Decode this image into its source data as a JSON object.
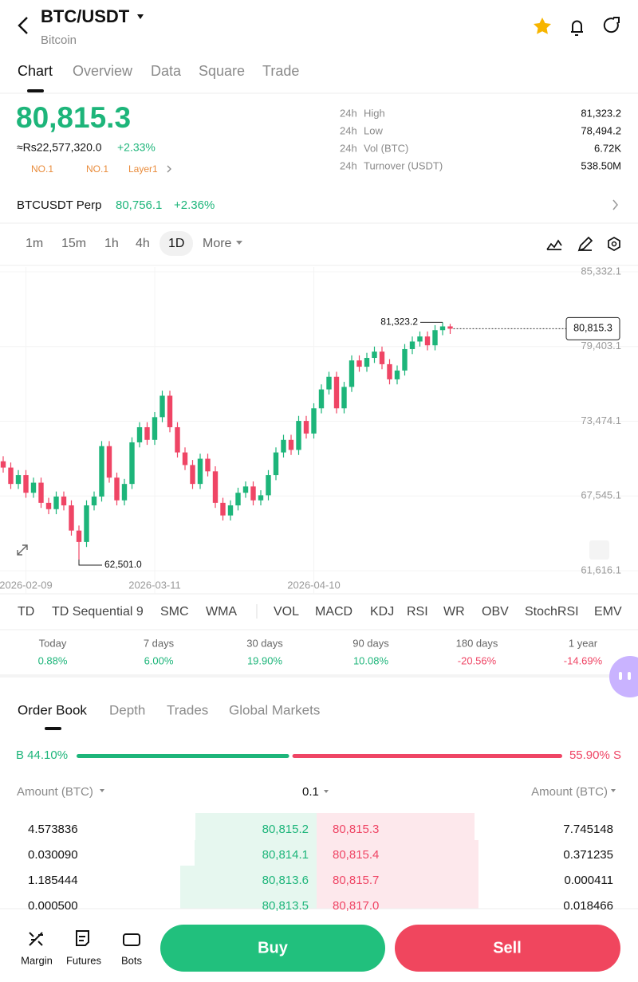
{
  "header": {
    "title": "BTC/USDT",
    "subtitle": "Bitcoin"
  },
  "tabs": [
    "Chart",
    "Overview",
    "Data",
    "Square",
    "Trade"
  ],
  "price": {
    "last": "80,815.3",
    "fiat": "≈Rs22,577,320.0",
    "change": "+2.33%",
    "tags": [
      "NO.1",
      "NO.1",
      "Layer1"
    ]
  },
  "stats": [
    {
      "period": "24h",
      "name": "High",
      "value": "81,323.2"
    },
    {
      "period": "24h",
      "name": "Low",
      "value": "78,494.2"
    },
    {
      "period": "24h",
      "name": "Vol (BTC)",
      "value": "6.72K"
    },
    {
      "period": "24h",
      "name": "Turnover (USDT)",
      "value": "538.50M"
    }
  ],
  "perp": {
    "name": "BTCUSDT Perp",
    "price": "80,756.1",
    "change": "+2.36%"
  },
  "timeframes": [
    "1m",
    "15m",
    "1h",
    "4h",
    "1D",
    "More"
  ],
  "chart_data": {
    "type": "candlestick",
    "categories": [
      null,
      null,
      null,
      "2026-02-09",
      null,
      null,
      null,
      null,
      null,
      null,
      null,
      null,
      null,
      null,
      null,
      null,
      null,
      null,
      null,
      null,
      "2026-03-11",
      null,
      null,
      null,
      null,
      null,
      null,
      null,
      null,
      null,
      null,
      null,
      null,
      null,
      null,
      null,
      null,
      null,
      null,
      null,
      null,
      "2026-04-10",
      null,
      null,
      null,
      null,
      null,
      null,
      null,
      null,
      null,
      null,
      null,
      null,
      null,
      null,
      null,
      null,
      null,
      null
    ],
    "open": [
      70300,
      69800,
      68500,
      69200,
      67800,
      68600,
      67000,
      66500,
      67500,
      66800,
      64800,
      63900,
      66800,
      67500,
      71500,
      69000,
      67200,
      68500,
      71800,
      73000,
      72000,
      73800,
      75500,
      73000,
      71000,
      70000,
      68500,
      70500,
      69500,
      67000,
      66000,
      66800,
      67800,
      68300,
      67200,
      67600,
      69200,
      71000,
      72000,
      71200,
      73500,
      72500,
      74500,
      76000,
      77000,
      74500,
      76200,
      78300,
      77800,
      78500,
      79000,
      78000,
      76800,
      77500,
      79200,
      79800,
      80200,
      79500,
      80700,
      81000
    ],
    "high": [
      70700,
      70200,
      69600,
      69600,
      69000,
      69000,
      67400,
      67900,
      67900,
      67200,
      65200,
      67200,
      67900,
      71900,
      71900,
      69400,
      68900,
      72200,
      73400,
      73400,
      74200,
      75900,
      75900,
      73400,
      71400,
      70400,
      70900,
      70900,
      69900,
      67400,
      67200,
      68200,
      68700,
      68700,
      68000,
      69600,
      71400,
      72400,
      72400,
      73900,
      73900,
      74900,
      76400,
      77400,
      77400,
      76600,
      78700,
      78700,
      78900,
      79400,
      79400,
      78400,
      77900,
      79600,
      80200,
      80600,
      80600,
      81100,
      81323.2,
      81200
    ],
    "low": [
      69400,
      68100,
      68100,
      67400,
      67400,
      66600,
      66100,
      66100,
      66400,
      64400,
      62501,
      63500,
      66400,
      67100,
      68600,
      66800,
      66800,
      68100,
      71400,
      71600,
      71600,
      73400,
      72600,
      70600,
      69600,
      68100,
      68100,
      69100,
      66600,
      65600,
      65600,
      66400,
      67400,
      66800,
      66800,
      67200,
      68800,
      70600,
      70800,
      70800,
      72100,
      72100,
      74100,
      75600,
      74100,
      74100,
      75800,
      77400,
      77400,
      78100,
      77600,
      76400,
      76400,
      77100,
      78800,
      79400,
      79100,
      79100,
      80300,
      80400
    ],
    "close": [
      69800,
      68500,
      69200,
      67800,
      68600,
      67000,
      66500,
      67500,
      66800,
      64800,
      63900,
      66800,
      67500,
      71500,
      69000,
      67200,
      68500,
      71800,
      73000,
      72000,
      73800,
      75500,
      73000,
      71000,
      70000,
      68500,
      70500,
      69500,
      67000,
      66000,
      66800,
      67800,
      68300,
      67200,
      67600,
      69200,
      71000,
      72000,
      71200,
      73500,
      72500,
      74500,
      76000,
      77000,
      74500,
      76200,
      78300,
      77800,
      78500,
      79000,
      78000,
      76800,
      77500,
      79200,
      79800,
      80200,
      79500,
      80700,
      81000,
      80815.3
    ],
    "up_color": "#1db57a",
    "down_color": "#ef4565",
    "ylim": [
      59782,
      85711
    ],
    "yticks": [
      {
        "value": 61616.1,
        "label": "61,616.1"
      },
      {
        "value": 67545.1,
        "label": "67,545.1"
      },
      {
        "value": 73474.1,
        "label": "73,474.1"
      },
      {
        "value": 79403.1,
        "label": "79,403.1"
      },
      {
        "value": 85332.1,
        "label": "85,332.1"
      }
    ],
    "grid": true,
    "max_marker": {
      "value": 81323.2,
      "label": "81,323.2"
    },
    "min_marker": {
      "value": 62501.0,
      "label": "62,501.0"
    },
    "last_price": {
      "value": 80815.3,
      "label": "80,815.3"
    }
  },
  "indicators": [
    "TD",
    "TD Sequential 9",
    "SMC",
    "WMA",
    "VOL",
    "MACD",
    "KDJ",
    "RSI",
    "WR",
    "OBV",
    "StochRSI",
    "EMV"
  ],
  "performance": [
    {
      "period": "Today",
      "value": "0.88%"
    },
    {
      "period": "7 days",
      "value": "6.00%"
    },
    {
      "period": "30 days",
      "value": "19.90%"
    },
    {
      "period": "90 days",
      "value": "10.08%"
    },
    {
      "period": "180 days",
      "value": "-20.56%"
    },
    {
      "period": "1 year",
      "value": "-14.69%"
    }
  ],
  "book_tabs": [
    "Order Book",
    "Depth",
    "Trades",
    "Global Markets"
  ],
  "ratio": {
    "buy": {
      "value": 44.1,
      "label": "B 44.10%"
    },
    "sell": {
      "value": 55.9,
      "label": "55.90% S"
    }
  },
  "book_columns": [
    "Amount (BTC)",
    "0.1",
    "Amount (BTC)"
  ],
  "book_rows": [
    [
      "4.573836",
      "80,815.2",
      "80,815.3",
      "7.745148"
    ],
    [
      "0.030090",
      "80,814.1",
      "80,815.4",
      "0.371235"
    ],
    [
      "1.185444",
      "80,813.6",
      "80,815.7",
      "0.000411"
    ],
    [
      "0.000500",
      "80,813.5",
      "80,817.0",
      "0.018466"
    ]
  ],
  "bottom_nav": [
    "Margin",
    "Futures",
    "Bots"
  ],
  "actions": {
    "buy": "Buy",
    "sell": "Sell"
  }
}
